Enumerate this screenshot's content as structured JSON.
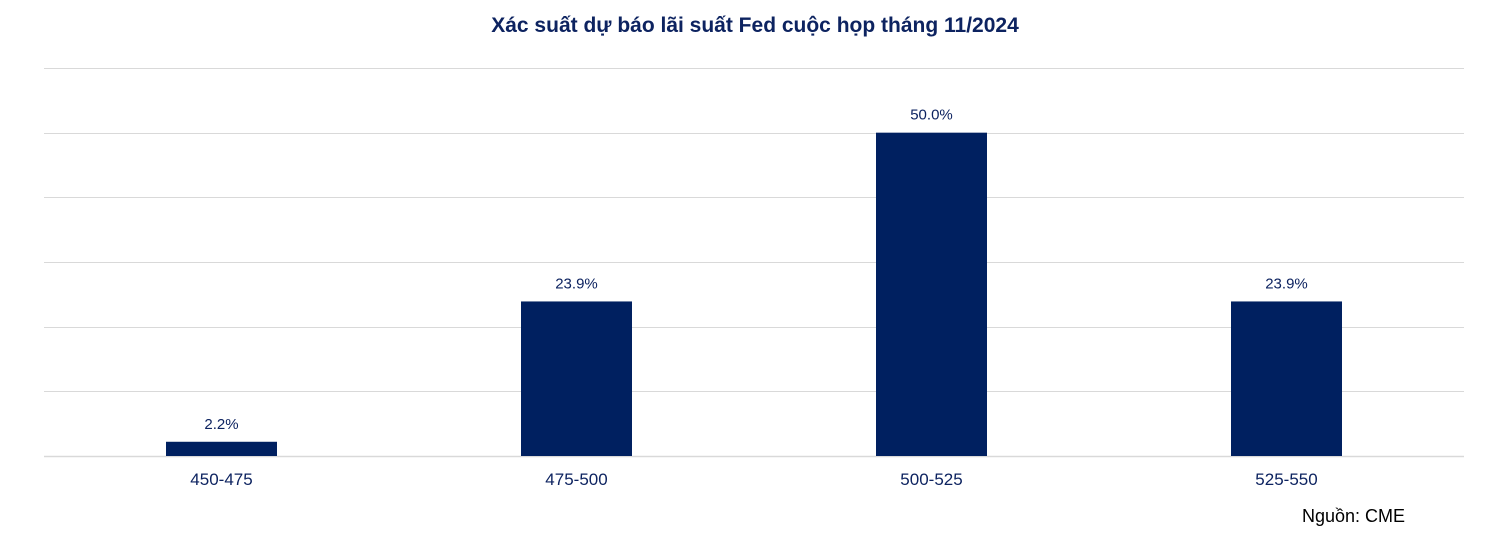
{
  "chart_data": {
    "type": "bar",
    "title": "Xác suất dự báo lãi suất Fed cuộc họp tháng 11/2024",
    "categories": [
      "450-475",
      "475-500",
      "500-525",
      "525-550"
    ],
    "values": [
      2.2,
      23.9,
      50.0,
      23.9
    ],
    "data_labels": [
      "2.2%",
      "23.9%",
      "50.0%",
      "23.9%"
    ],
    "ylim": [
      0,
      60
    ],
    "grid": true,
    "xlabel": "",
    "ylabel": "",
    "bar_color": "#002060",
    "grid_color": "#d9d9d9"
  },
  "source": "Nguồn: CME"
}
